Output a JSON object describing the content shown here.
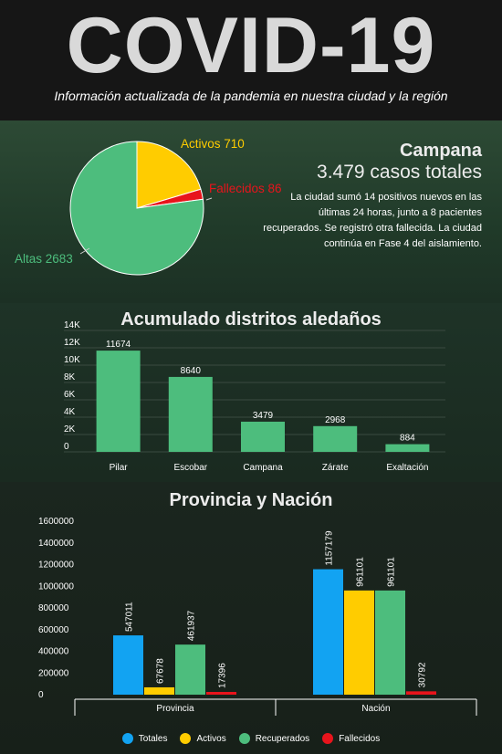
{
  "header": {
    "title": "COVID-19",
    "subtitle": "Información actualizada de la pandemia en nuestra ciudad y la región"
  },
  "campana": {
    "city": "Campana",
    "total": "3.479 casos totales",
    "description": "La ciudad sumó 14 positivos nuevos en las últimas 24 horas, junto a 8 pacientes recuperados. Se registró otra fallecida. La ciudad continúa en Fase 4 del aislamiento.",
    "pie_labels": {
      "activos": "Activos 710",
      "fallecidos": "Fallecidos 86",
      "altas": "Altas 2683"
    }
  },
  "colors": {
    "activos": "#ffcc00",
    "fallecidos": "#e8141c",
    "altas": "#4dbd7d",
    "totales": "#12a3f2"
  },
  "chart_data": [
    {
      "type": "pie",
      "categories": [
        "Activos",
        "Fallecidos",
        "Altas"
      ],
      "values": [
        710,
        86,
        2683
      ]
    },
    {
      "type": "bar",
      "title": "Acumulado distritos aledaños",
      "categories": [
        "Pilar",
        "Escobar",
        "Campana",
        "Zárate",
        "Exaltación"
      ],
      "values": [
        11674,
        8640,
        3479,
        2968,
        884
      ],
      "yticks": [
        "0",
        "2K",
        "4K",
        "6K",
        "8K",
        "10K",
        "12K",
        "14K"
      ],
      "ylim": [
        0,
        14000
      ],
      "grid": true
    },
    {
      "type": "bar",
      "title": "Provincia y Nación",
      "categories": [
        "Provincia",
        "Nación"
      ],
      "series": [
        {
          "name": "Totales",
          "values": [
            547011,
            1157179
          ]
        },
        {
          "name": "Activos",
          "values": [
            67678,
            961101
          ]
        },
        {
          "name": "Recuperados",
          "values": [
            461937,
            961101
          ]
        },
        {
          "name": "Fallecidos",
          "values": [
            17396,
            30792
          ]
        }
      ],
      "yticks": [
        "0",
        "200000",
        "400000",
        "600000",
        "800000",
        "1000000",
        "1200000",
        "1400000",
        "1600000"
      ],
      "ylim": [
        0,
        1600000
      ],
      "legend": "bottom"
    }
  ]
}
